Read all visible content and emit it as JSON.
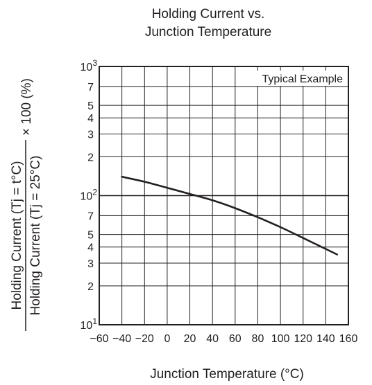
{
  "chart_data": {
    "type": "line",
    "title": [
      "Holding Current vs.",
      "Junction Temperature"
    ],
    "xlabel": "Junction Temperature  (°C)",
    "ylabel": {
      "numerator": "Holding Current  (Tj = t°C)",
      "denominator": "Holding Current  (Tj = 25°C)",
      "suffix": "× 100 (%)"
    },
    "annotation": "Typical Example",
    "x_scale": "linear",
    "y_scale": "log",
    "xlim": [
      -60,
      160
    ],
    "ylim": [
      10,
      1000
    ],
    "grid": true,
    "x_ticks": [
      -60,
      -40,
      -20,
      0,
      20,
      40,
      60,
      80,
      100,
      120,
      140,
      160
    ],
    "x_tick_labels": [
      "−60",
      "−40",
      "−20",
      "0",
      "20",
      "40",
      "60",
      "80",
      "100",
      "120",
      "140",
      "160"
    ],
    "y_ticks": [
      {
        "value": 1000,
        "base": "10",
        "exp": "3"
      },
      {
        "value": 700,
        "label": "7"
      },
      {
        "value": 500,
        "label": "5"
      },
      {
        "value": 400,
        "label": "4"
      },
      {
        "value": 300,
        "label": "3"
      },
      {
        "value": 200,
        "label": "2"
      },
      {
        "value": 100,
        "base": "10",
        "exp": "2"
      },
      {
        "value": 70,
        "label": "7"
      },
      {
        "value": 50,
        "label": "5"
      },
      {
        "value": 40,
        "label": "4"
      },
      {
        "value": 30,
        "label": "3"
      },
      {
        "value": 20,
        "label": "2"
      },
      {
        "value": 10,
        "base": "10",
        "exp": "1"
      }
    ],
    "series": [
      {
        "x": [
          -40,
          -20,
          0,
          20,
          40,
          60,
          80,
          100,
          120,
          150
        ],
        "y": [
          140,
          128,
          115,
          103,
          92,
          80,
          68,
          57,
          47,
          35
        ]
      }
    ]
  }
}
